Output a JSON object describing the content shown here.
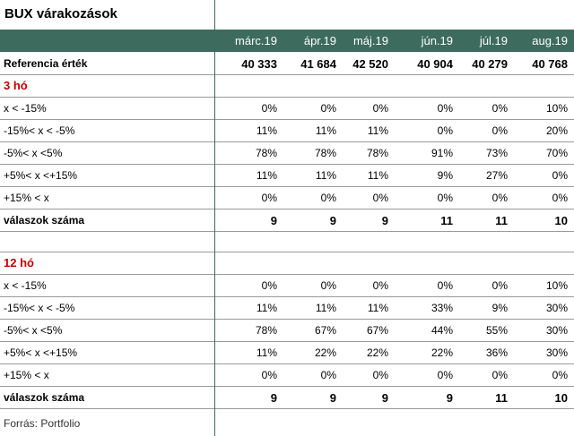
{
  "title": "BUX várakozások",
  "months": [
    "márc.19",
    "ápr.19",
    "máj.19",
    "jún.19",
    "júl.19",
    "aug.19"
  ],
  "reference": {
    "label": "Referencia érték",
    "values": [
      "40 333",
      "41 684",
      "42 520",
      "40 904",
      "40 279",
      "40 768"
    ]
  },
  "sections": [
    {
      "title": "3 hó",
      "rows": [
        {
          "label": "x < -15%",
          "values": [
            "0%",
            "0%",
            "0%",
            "0%",
            "0%",
            "10%"
          ]
        },
        {
          "label": "-15%< x < -5%",
          "values": [
            "11%",
            "11%",
            "11%",
            "0%",
            "0%",
            "20%"
          ]
        },
        {
          "label": "-5%< x <5%",
          "values": [
            "78%",
            "78%",
            "78%",
            "91%",
            "73%",
            "70%"
          ]
        },
        {
          "label": "+5%< x <+15%",
          "values": [
            "11%",
            "11%",
            "11%",
            "9%",
            "27%",
            "0%"
          ]
        },
        {
          "label": "+15% < x",
          "values": [
            "0%",
            "0%",
            "0%",
            "0%",
            "0%",
            "0%"
          ]
        }
      ],
      "count": {
        "label": "válaszok száma",
        "values": [
          "9",
          "9",
          "9",
          "11",
          "11",
          "10"
        ]
      }
    },
    {
      "title": "12 hó",
      "rows": [
        {
          "label": "x < -15%",
          "values": [
            "0%",
            "0%",
            "0%",
            "0%",
            "0%",
            "10%"
          ]
        },
        {
          "label": "-15%< x < -5%",
          "values": [
            "11%",
            "11%",
            "11%",
            "33%",
            "9%",
            "30%"
          ]
        },
        {
          "label": "-5%< x <5%",
          "values": [
            "78%",
            "67%",
            "67%",
            "44%",
            "55%",
            "30%"
          ]
        },
        {
          "label": "+5%< x <+15%",
          "values": [
            "11%",
            "22%",
            "22%",
            "22%",
            "36%",
            "30%"
          ]
        },
        {
          "label": "+15% < x",
          "values": [
            "0%",
            "0%",
            "0%",
            "0%",
            "0%",
            "0%"
          ]
        }
      ],
      "count": {
        "label": "válaszok száma",
        "values": [
          "9",
          "9",
          "9",
          "9",
          "11",
          "10"
        ]
      }
    }
  ],
  "source": "Forrás: Portfolio",
  "colors": {
    "header_bg": "#3d6b5e",
    "section_title": "#c00000"
  }
}
